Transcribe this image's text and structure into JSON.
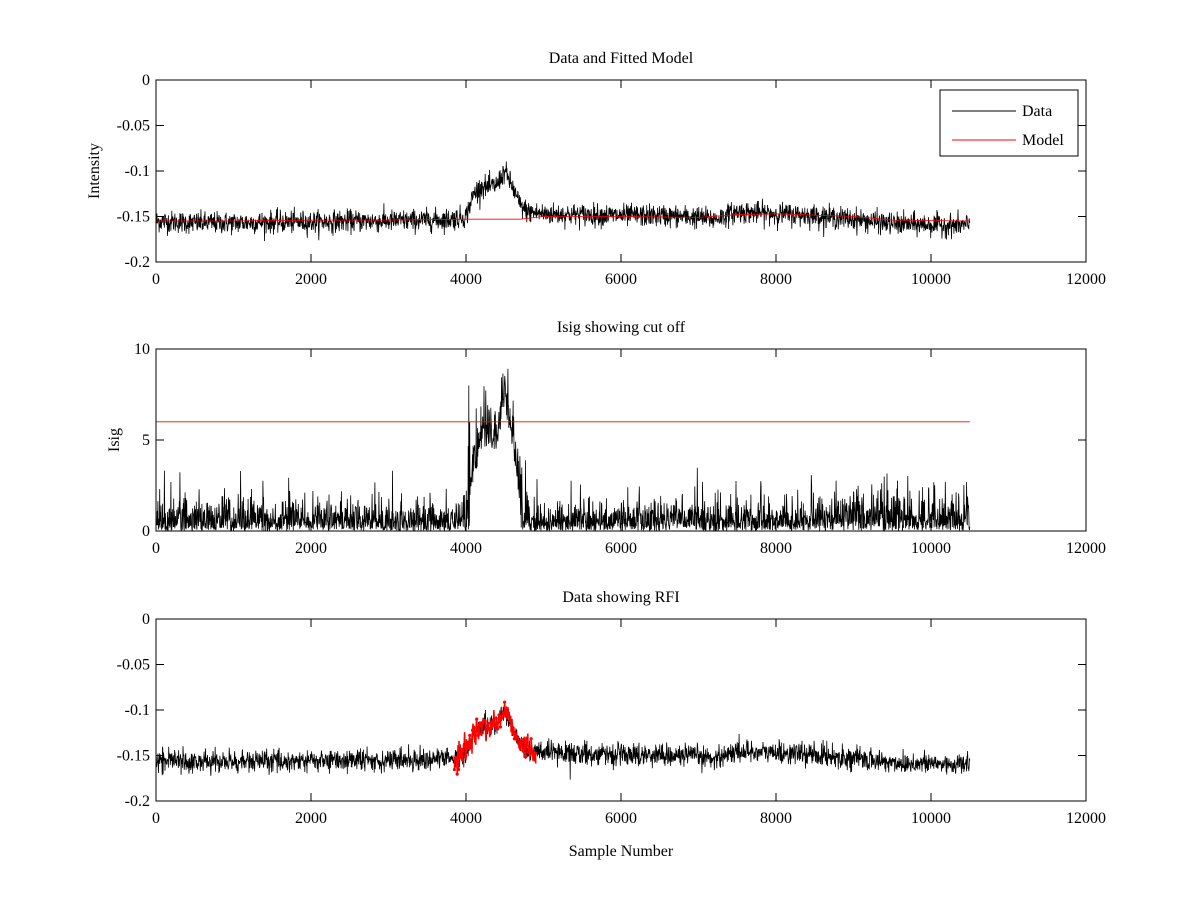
{
  "colors": {
    "data": "#000000",
    "model": "#ff0000",
    "rfi": "#ff0000",
    "background": "#ffffff"
  },
  "chart_data": [
    {
      "type": "line",
      "title": "Data and Fitted Model",
      "xlabel": "",
      "ylabel": "Intensity",
      "xlim": [
        0,
        12000
      ],
      "ylim": [
        -0.2,
        0
      ],
      "xticks": [
        "0",
        "2000",
        "4000",
        "6000",
        "8000",
        "10000",
        "12000"
      ],
      "yticks": [
        "0",
        "-0.05",
        "-0.1",
        "-0.15",
        "-0.2"
      ],
      "xtick_values": [
        0,
        2000,
        4000,
        6000,
        8000,
        10000,
        12000
      ],
      "ytick_values": [
        0,
        -0.05,
        -0.1,
        -0.15,
        -0.2
      ],
      "legend": {
        "placement": "top-right",
        "entries": [
          "Data",
          "Model"
        ]
      },
      "series": [
        {
          "name": "Data",
          "color": "#000000",
          "noise": 0.006,
          "x": [
            0,
            500,
            1000,
            1500,
            2000,
            2500,
            3000,
            3500,
            3800,
            4000,
            4100,
            4200,
            4300,
            4400,
            4500,
            4600,
            4700,
            4800,
            5000,
            5500,
            6000,
            6500,
            7000,
            7200,
            7500,
            8000,
            8500,
            9000,
            9500,
            10000,
            10500
          ],
          "y": [
            -0.155,
            -0.157,
            -0.157,
            -0.156,
            -0.156,
            -0.155,
            -0.155,
            -0.154,
            -0.153,
            -0.15,
            -0.125,
            -0.117,
            -0.118,
            -0.115,
            -0.1,
            -0.118,
            -0.138,
            -0.145,
            -0.147,
            -0.148,
            -0.149,
            -0.149,
            -0.151,
            -0.153,
            -0.145,
            -0.147,
            -0.149,
            -0.153,
            -0.158,
            -0.159,
            -0.16
          ]
        },
        {
          "name": "Model",
          "color": "#ff0000",
          "noise": 0,
          "x": [
            0,
            1000,
            2000,
            3000,
            4000,
            4700,
            5000,
            6000,
            7000,
            7500,
            8000,
            9000,
            9500,
            10500
          ],
          "y": [
            -0.155,
            -0.155,
            -0.154,
            -0.154,
            -0.153,
            -0.153,
            -0.15,
            -0.15,
            -0.151,
            -0.148,
            -0.147,
            -0.15,
            -0.154,
            -0.155
          ]
        }
      ]
    },
    {
      "type": "line",
      "title": "Isig showing cut off",
      "xlabel": "",
      "ylabel": "Isig",
      "xlim": [
        0,
        12000
      ],
      "ylim": [
        0,
        10
      ],
      "xticks": [
        "0",
        "2000",
        "4000",
        "6000",
        "8000",
        "10000",
        "12000"
      ],
      "yticks": [
        "10",
        "5",
        "0"
      ],
      "xtick_values": [
        0,
        2000,
        4000,
        6000,
        8000,
        10000,
        12000
      ],
      "ytick_values": [
        10,
        5,
        0
      ],
      "series": [
        {
          "color": "#000000",
          "noise": 0,
          "x": [
            0,
            1000,
            2000,
            3000,
            3800,
            4000,
            4100,
            4200,
            4300,
            4400,
            4500,
            4600,
            4700,
            4800,
            5000,
            6000,
            7000,
            8000,
            9000,
            10000,
            10500
          ],
          "y": [
            0.7,
            0.8,
            0.8,
            0.7,
            0.6,
            1.0,
            3.5,
            5.0,
            5.2,
            5.0,
            7.5,
            5.0,
            2.0,
            0.9,
            0.7,
            0.7,
            0.8,
            0.8,
            0.9,
            0.9,
            0.8
          ]
        },
        {
          "color": "#ff0000",
          "noise": 0,
          "x": [
            0,
            10500
          ],
          "y": [
            6,
            6
          ]
        }
      ]
    },
    {
      "type": "line",
      "title": "Data showing RFI",
      "xlabel": "Sample Number",
      "ylabel": "",
      "xlim": [
        0,
        12000
      ],
      "ylim": [
        -0.2,
        0
      ],
      "xticks": [
        "0",
        "2000",
        "4000",
        "6000",
        "8000",
        "10000",
        "12000"
      ],
      "yticks": [
        "0",
        "-0.05",
        "-0.1",
        "-0.15",
        "-0.2"
      ],
      "xtick_values": [
        0,
        2000,
        4000,
        6000,
        8000,
        10000,
        12000
      ],
      "ytick_values": [
        0,
        -0.05,
        -0.1,
        -0.15,
        -0.2
      ],
      "series": [
        {
          "color": "#000000",
          "noise": 0.006,
          "x": [
            0,
            500,
            1000,
            1500,
            2000,
            2500,
            3000,
            3500,
            3800,
            4000,
            4100,
            4200,
            4300,
            4400,
            4500,
            4600,
            4700,
            4800,
            5000,
            5500,
            6000,
            6500,
            7000,
            7200,
            7500,
            8000,
            8500,
            9000,
            9500,
            10000,
            10500
          ],
          "y": [
            -0.155,
            -0.157,
            -0.157,
            -0.156,
            -0.156,
            -0.155,
            -0.155,
            -0.154,
            -0.153,
            -0.15,
            -0.125,
            -0.117,
            -0.118,
            -0.115,
            -0.1,
            -0.118,
            -0.138,
            -0.145,
            -0.147,
            -0.148,
            -0.149,
            -0.149,
            -0.151,
            -0.153,
            -0.145,
            -0.147,
            -0.149,
            -0.153,
            -0.158,
            -0.159,
            -0.16
          ]
        },
        {
          "color": "#ff0000",
          "noise": 0.007,
          "markers": true,
          "x": [
            3850,
            3950,
            4050,
            4100,
            4200,
            4300,
            4400,
            4500,
            4600,
            4700,
            4800,
            4900
          ],
          "y": [
            -0.153,
            -0.15,
            -0.135,
            -0.125,
            -0.118,
            -0.118,
            -0.115,
            -0.1,
            -0.118,
            -0.135,
            -0.143,
            -0.147
          ]
        }
      ]
    }
  ]
}
